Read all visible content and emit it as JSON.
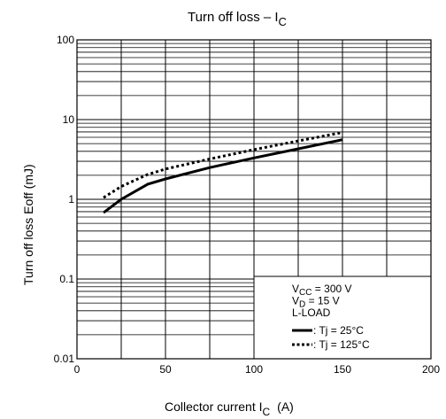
{
  "chart_data": {
    "type": "line",
    "title": "Turn off loss – I",
    "title_sub": "C",
    "xlabel": "Collector current   I",
    "xlabel_sub": "C",
    "xlabel_unit": "(A)",
    "ylabel": "Turn off loss    Eoff    (mJ)",
    "xlim": [
      0,
      200
    ],
    "ylim": [
      0.01,
      100
    ],
    "yscale": "log",
    "grid": true,
    "x_ticks": [
      "0",
      "50",
      "100",
      "150",
      "200"
    ],
    "y_ticks": [
      "0.01",
      "0.1",
      "1",
      "10",
      "100"
    ],
    "series": [
      {
        "name": ": Tj = 25°C",
        "style": "solid",
        "x": [
          15,
          25,
          40,
          50,
          75,
          100,
          125,
          150
        ],
        "y": [
          0.68,
          1.0,
          1.55,
          1.8,
          2.5,
          3.3,
          4.3,
          5.6
        ]
      },
      {
        "name": ": Tj = 125°C",
        "style": "dotted",
        "x": [
          15,
          25,
          40,
          50,
          75,
          100,
          125,
          150
        ],
        "y": [
          1.05,
          1.45,
          2.05,
          2.4,
          3.2,
          4.2,
          5.4,
          6.9
        ]
      }
    ],
    "legend": {
      "position": "bottom-right",
      "lines": [
        {
          "main": "V",
          "sub": "CC",
          "rest": " = 300 V"
        },
        {
          "main": "V",
          "sub": "D",
          "rest": " = 15 V"
        },
        {
          "main": "L-LOAD",
          "sub": "",
          "rest": ""
        }
      ]
    }
  }
}
